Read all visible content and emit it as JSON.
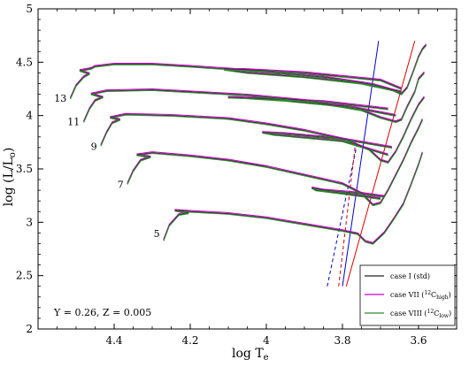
{
  "chart_data": {
    "type": "line",
    "title": "",
    "xlabel": {
      "main": "log T",
      "sub": "e"
    },
    "ylabel": {
      "main": "log (L/L",
      "sub": "o",
      "end": ")"
    },
    "xlim": [
      4.6,
      3.5
    ],
    "ylim": [
      2.0,
      5.0
    ],
    "x_ticks": [
      4.4,
      4.2,
      4.0,
      3.8,
      3.6
    ],
    "x_tick_labels": [
      "4.4",
      "4.2",
      "4",
      "3.8",
      "3.6"
    ],
    "y_ticks": [
      2.0,
      2.5,
      3.0,
      3.5,
      4.0,
      4.5,
      5.0
    ],
    "y_tick_labels": [
      "2",
      "2.5",
      "3",
      "3.5",
      "4",
      "4.5",
      "5"
    ],
    "grid": false,
    "annotation": "Y = 0.26, Z = 0.005",
    "legend": {
      "placement": "bottom-right",
      "entries": [
        {
          "text": "case I (std)",
          "color": "#222222"
        },
        {
          "text": "case VII (",
          "sup": "12",
          "mid": "C",
          "sub": "high",
          "end": ")",
          "color": "#cc00cc"
        },
        {
          "text": "case VIII (",
          "sup": "12",
          "mid": "C",
          "sub": "low",
          "end": ")",
          "color": "#2e8b2e"
        }
      ]
    },
    "tracks": [
      {
        "mass_label": "5",
        "label_at": [
          4.28,
          2.86
        ],
        "points": [
          [
            4.27,
            2.83
          ],
          [
            4.255,
            2.97
          ],
          [
            4.23,
            3.07
          ],
          [
            4.205,
            3.085
          ],
          [
            4.24,
            3.11
          ],
          [
            4.2,
            3.1
          ],
          [
            4.1,
            3.08
          ],
          [
            4.0,
            3.04
          ],
          [
            3.9,
            2.98
          ],
          [
            3.8,
            2.92
          ],
          [
            3.76,
            2.89
          ],
          [
            3.74,
            2.82
          ],
          [
            3.72,
            2.8
          ],
          [
            3.69,
            2.9
          ],
          [
            3.665,
            3.03
          ],
          [
            3.64,
            3.17
          ],
          [
            3.62,
            3.35
          ],
          [
            3.6,
            3.54
          ],
          [
            3.59,
            3.65
          ]
        ],
        "loop": null
      },
      {
        "mass_label": "7",
        "label_at": [
          4.375,
          3.32
        ],
        "points": [
          [
            4.365,
            3.36
          ],
          [
            4.35,
            3.48
          ],
          [
            4.33,
            3.58
          ],
          [
            4.305,
            3.61
          ],
          [
            4.34,
            3.63
          ],
          [
            4.3,
            3.65
          ],
          [
            4.2,
            3.62
          ],
          [
            4.1,
            3.58
          ],
          [
            4.0,
            3.52
          ],
          [
            3.9,
            3.44
          ],
          [
            3.8,
            3.36
          ],
          [
            3.75,
            3.27
          ],
          [
            3.72,
            3.16
          ],
          [
            3.7,
            3.18
          ],
          [
            3.68,
            3.3
          ],
          [
            3.66,
            3.44
          ],
          [
            3.64,
            3.58
          ],
          [
            3.62,
            3.74
          ],
          [
            3.6,
            3.88
          ],
          [
            3.59,
            3.96
          ]
        ],
        "loop": [
          [
            3.7,
            3.22
          ],
          [
            3.8,
            3.27
          ],
          [
            3.87,
            3.3
          ],
          [
            3.88,
            3.32
          ],
          [
            3.85,
            3.3
          ],
          [
            3.75,
            3.27
          ],
          [
            3.69,
            3.24
          ]
        ]
      },
      {
        "mass_label": "9",
        "label_at": [
          4.445,
          3.68
        ],
        "points": [
          [
            4.435,
            3.72
          ],
          [
            4.42,
            3.84
          ],
          [
            4.405,
            3.93
          ],
          [
            4.385,
            3.96
          ],
          [
            4.41,
            3.98
          ],
          [
            4.37,
            4.01
          ],
          [
            4.25,
            4.0
          ],
          [
            4.1,
            3.97
          ],
          [
            4.0,
            3.92
          ],
          [
            3.9,
            3.86
          ],
          [
            3.8,
            3.78
          ],
          [
            3.73,
            3.68
          ],
          [
            3.7,
            3.58
          ],
          [
            3.68,
            3.56
          ],
          [
            3.66,
            3.66
          ],
          [
            3.64,
            3.8
          ],
          [
            3.62,
            3.96
          ],
          [
            3.6,
            4.1
          ],
          [
            3.585,
            4.17
          ]
        ],
        "loop": [
          [
            3.68,
            3.63
          ],
          [
            3.8,
            3.76
          ],
          [
            3.98,
            3.82
          ],
          [
            4.01,
            3.84
          ],
          [
            3.95,
            3.83
          ],
          [
            3.8,
            3.78
          ],
          [
            3.67,
            3.7
          ]
        ]
      },
      {
        "mass_label": "11",
        "label_at": [
          4.49,
          3.91
        ],
        "points": [
          [
            4.48,
            3.94
          ],
          [
            4.465,
            4.06
          ],
          [
            4.45,
            4.14
          ],
          [
            4.43,
            4.17
          ],
          [
            4.46,
            4.2
          ],
          [
            4.42,
            4.23
          ],
          [
            4.3,
            4.24
          ],
          [
            4.2,
            4.22
          ],
          [
            4.05,
            4.19
          ],
          [
            3.9,
            4.14
          ],
          [
            3.75,
            4.05
          ],
          [
            3.7,
            3.98
          ],
          [
            3.66,
            3.94
          ],
          [
            3.645,
            3.96
          ],
          [
            3.63,
            4.08
          ],
          [
            3.61,
            4.22
          ],
          [
            3.6,
            4.34
          ],
          [
            3.585,
            4.4
          ]
        ],
        "loop": [
          [
            3.66,
            4.0
          ],
          [
            3.78,
            4.08
          ],
          [
            3.95,
            4.14
          ],
          [
            4.08,
            4.17
          ],
          [
            4.1,
            4.17
          ],
          [
            4.02,
            4.16
          ],
          [
            3.85,
            4.13
          ],
          [
            3.68,
            4.06
          ]
        ]
      },
      {
        "mass_label": "13",
        "label_at": [
          4.525,
          4.13
        ],
        "points": [
          [
            4.515,
            4.16
          ],
          [
            4.5,
            4.28
          ],
          [
            4.48,
            4.36
          ],
          [
            4.465,
            4.39
          ],
          [
            4.49,
            4.42
          ],
          [
            4.46,
            4.44
          ],
          [
            4.45,
            4.46
          ],
          [
            4.4,
            4.48
          ],
          [
            4.3,
            4.48
          ],
          [
            4.2,
            4.46
          ],
          [
            4.0,
            4.41
          ],
          [
            3.85,
            4.36
          ],
          [
            3.72,
            4.29
          ],
          [
            3.67,
            4.24
          ],
          [
            3.645,
            4.2
          ],
          [
            3.63,
            4.26
          ],
          [
            3.615,
            4.4
          ],
          [
            3.6,
            4.55
          ],
          [
            3.59,
            4.62
          ],
          [
            3.58,
            4.66
          ]
        ],
        "loop": [
          [
            3.645,
            4.22
          ],
          [
            3.75,
            4.3
          ],
          [
            3.9,
            4.36
          ],
          [
            4.05,
            4.4
          ],
          [
            4.11,
            4.43
          ],
          [
            4.06,
            4.43
          ],
          [
            3.9,
            4.4
          ],
          [
            3.7,
            4.33
          ],
          [
            3.645,
            4.25
          ]
        ]
      }
    ],
    "instability_strip": [
      {
        "style": "dashed",
        "color": "#0000cc",
        "from": [
          3.84,
          2.4
        ],
        "to": [
          3.76,
          3.76
        ]
      },
      {
        "style": "dashed",
        "color": "#cc0000",
        "from": [
          3.81,
          2.4
        ],
        "to": [
          3.765,
          3.76
        ]
      },
      {
        "style": "solid",
        "color": "#0000cc",
        "from": [
          3.8,
          2.4
        ],
        "to": [
          3.705,
          4.7
        ]
      },
      {
        "style": "solid",
        "color": "#dd0000",
        "from": [
          3.79,
          2.4
        ],
        "to": [
          3.61,
          4.7
        ]
      }
    ]
  }
}
